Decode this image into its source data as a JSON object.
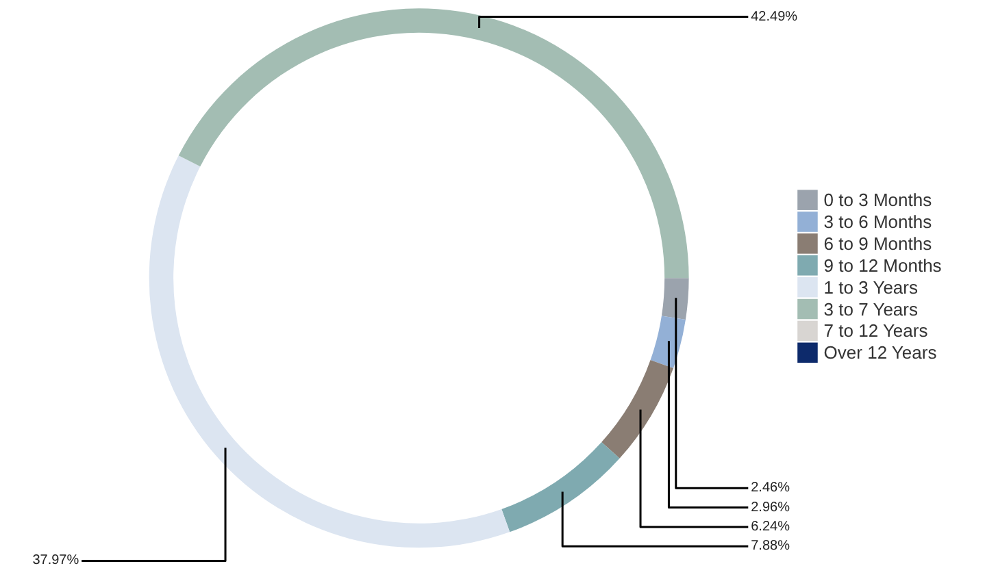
{
  "chart_data": {
    "type": "donut",
    "categories": [
      "0 to 3 Months",
      "3 to 6 Months",
      "6 to 9 Months",
      "9 to 12 Months",
      "1 to 3 Years",
      "3 to 7 Years",
      "7 to 12 Years",
      "Over 12 Years"
    ],
    "values": [
      2.46,
      2.96,
      6.24,
      7.88,
      37.97,
      42.49,
      0,
      0
    ],
    "value_labels": [
      "2.46%",
      "2.96%",
      "6.24%",
      "7.88%",
      "37.97%",
      "42.49%",
      null,
      null
    ],
    "colors": [
      "#9ba3ad",
      "#93b0d6",
      "#8a7d73",
      "#7faab0",
      "#dce5f1",
      "#a3bdb3",
      "#d8d5d2",
      "#0d2a6b"
    ],
    "legend": "right"
  }
}
